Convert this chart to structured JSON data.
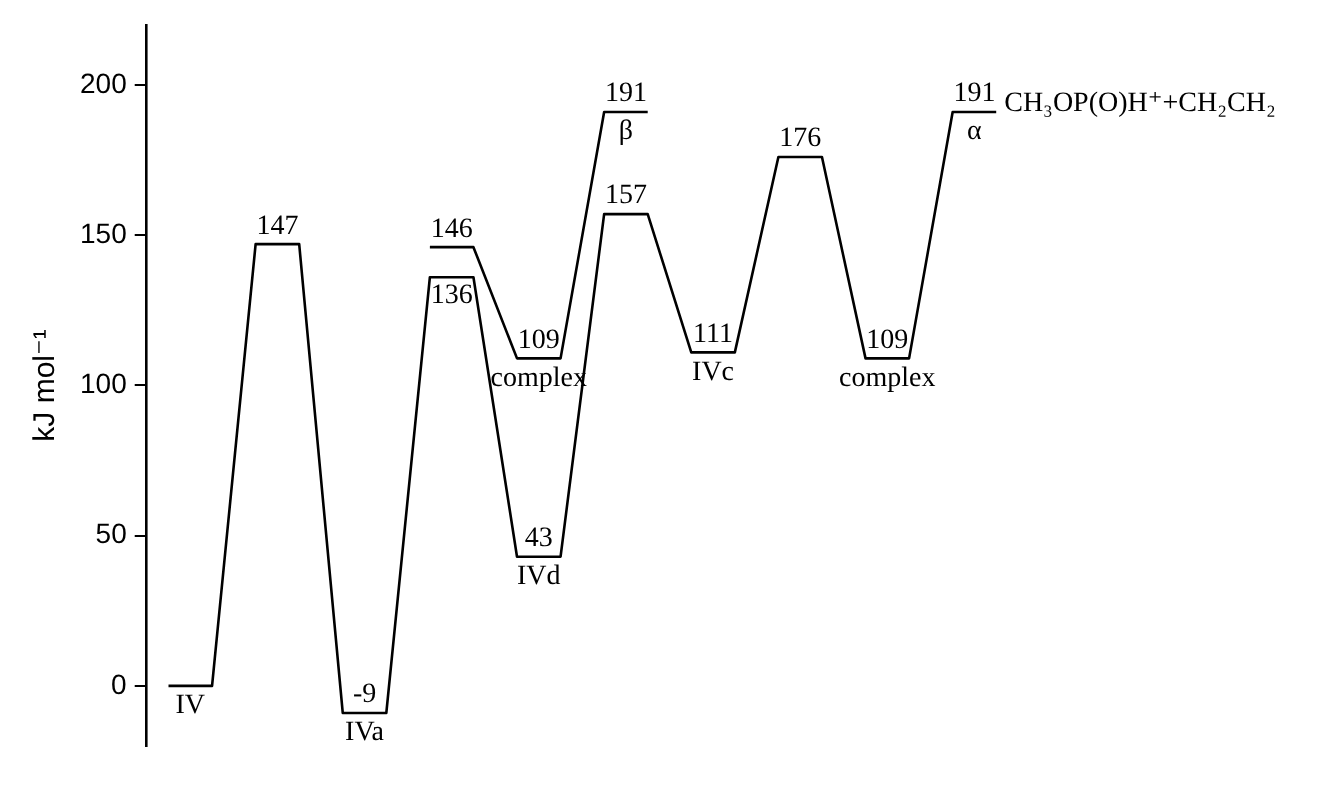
{
  "chart_data": {
    "type": "line",
    "ylabel": "kJ mol⁻¹",
    "categories": [
      null,
      null,
      null,
      null,
      null,
      null,
      null,
      null,
      null,
      null,
      null,
      null,
      null,
      null,
      null,
      null,
      null,
      null,
      null,
      null
    ],
    "series": [
      {
        "color": "#000000",
        "values": [
          0,
          0,
          147,
          147,
          -9,
          -9,
          136,
          136,
          43,
          43,
          157,
          157,
          111,
          111,
          176,
          176,
          109,
          109,
          191,
          191
        ],
        "value_labels": [
          null,
          null,
          "147",
          null,
          "-9",
          null,
          "136",
          null,
          "43",
          null,
          "157",
          null,
          "111",
          null,
          "176",
          null,
          "109",
          null,
          "191",
          null
        ]
      },
      {
        "color": "#000000",
        "values": [
          null,
          null,
          null,
          null,
          null,
          null,
          146,
          146,
          109,
          109,
          191,
          191,
          null,
          null,
          null,
          null,
          null,
          null,
          null,
          null
        ],
        "value_labels": [
          null,
          null,
          null,
          null,
          null,
          null,
          "146",
          null,
          "109",
          null,
          "191",
          null,
          null,
          null,
          null,
          null,
          null,
          null,
          null,
          null
        ]
      }
    ],
    "annotations": [
      {
        "text": "IV",
        "y": 0
      },
      {
        "text": "IVa",
        "y": -9
      },
      {
        "text": "complex",
        "y": 109
      },
      {
        "text": "IVd",
        "y": 43
      },
      {
        "text": "β",
        "y": 191
      },
      {
        "text": "IVc",
        "y": 111
      },
      {
        "text": "complex",
        "y": 109
      },
      {
        "text": "α",
        "y": 191
      },
      "CH₃OP(O)H⁺+CH₂CH₂"
    ],
    "ylim": [
      -20,
      220
    ],
    "yticks": [
      0,
      50,
      100,
      150,
      200
    ],
    "tick_labels": "y",
    "grid": false,
    "legend": false,
    "marker": "none",
    "line_style": "solid"
  }
}
